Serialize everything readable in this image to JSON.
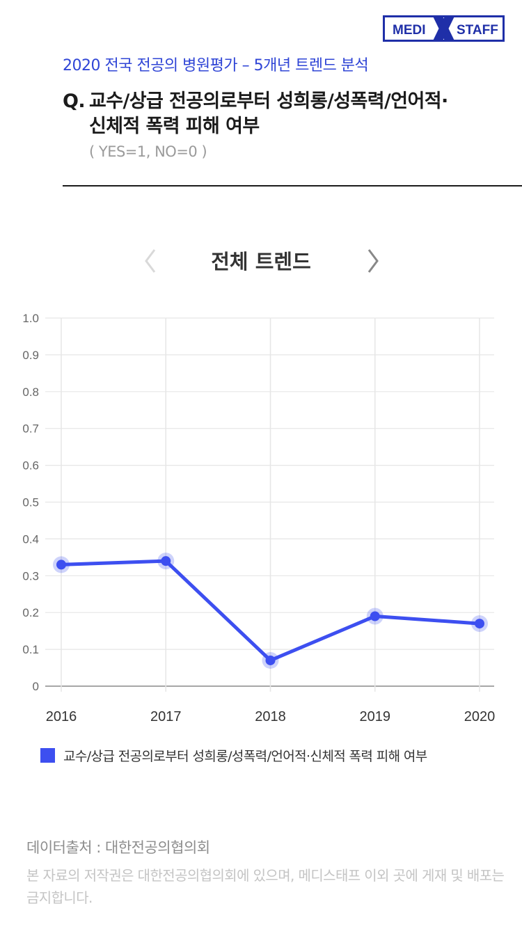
{
  "brand": {
    "logo_left": "MEDI",
    "logo_right": "STAFF",
    "color": "#1f2fa8"
  },
  "header": {
    "subtitle": "2020 전국 전공의 병원평가 – 5개년 트렌드 분석",
    "question_prefix": "Q.",
    "question_line1": "교수/상급 전공의로부터 성희롱/성폭력/언어적·",
    "question_line2": "신체적 폭력 피해 여부",
    "scale_note": "( YES=1, NO=0 )"
  },
  "nav": {
    "title": "전체 트렌드",
    "prev_icon": "chevron-left-icon",
    "next_icon": "chevron-right-icon"
  },
  "chart_data": {
    "type": "line",
    "x": [
      "2016",
      "2017",
      "2018",
      "2019",
      "2020"
    ],
    "ylim": [
      0,
      1.0
    ],
    "yticks": [
      "1.0",
      "0.9",
      "0.8",
      "0.7",
      "0.6",
      "0.5",
      "0.4",
      "0.3",
      "0.2",
      "0.1",
      "0"
    ],
    "grid": true,
    "legend_position": "bottom-left",
    "series": [
      {
        "name": "교수/상급 전공의로부터 성희롱/성폭력/언어적·신체적 폭력 피해 여부",
        "values": [
          0.33,
          0.34,
          0.07,
          0.19,
          0.17
        ],
        "color": "#3d4ff0"
      }
    ]
  },
  "footer": {
    "source": "데이터출처 : 대한전공의협의회",
    "copyright": "본 자료의 저작권은 대한전공의협의회에 있으며, 메디스태프 이외 곳에 게재 및 배포는 금지합니다."
  }
}
